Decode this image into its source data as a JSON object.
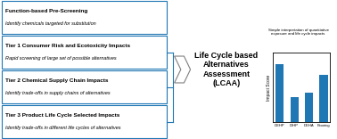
{
  "chart_data": {
    "type": "bar",
    "title": "Life Cycle based\nAlternatives\nAssessment\n(LCAA)",
    "subtitle": "Simple interpretation of quantitative\nexposure and life cycle impacts",
    "categories": [
      "DEHP",
      "DIHP",
      "DEHA",
      "Flooring"
    ],
    "values": [
      0.88,
      0.38,
      0.45,
      0.72
    ],
    "y_label": "Impact Score",
    "ylim": [
      0,
      1.05
    ],
    "yticks": [],
    "tick_labels": "x",
    "annotations": [
      "Function-based Pre-Screening",
      "Identify chemicals targeted for substitution",
      "Tier 1 Consumer Risk and Ecotoxicity Impacts",
      "Rapid screening of large set of possible alternatives",
      "Tier 2 Chemical Supply Chain Impacts",
      "Identify trade-offs in supply chains of alternatives",
      "Tier 3 Product Life Cycle Selected Impacts",
      "Identify trade-offs in different life cycles of alternatives"
    ]
  }
}
